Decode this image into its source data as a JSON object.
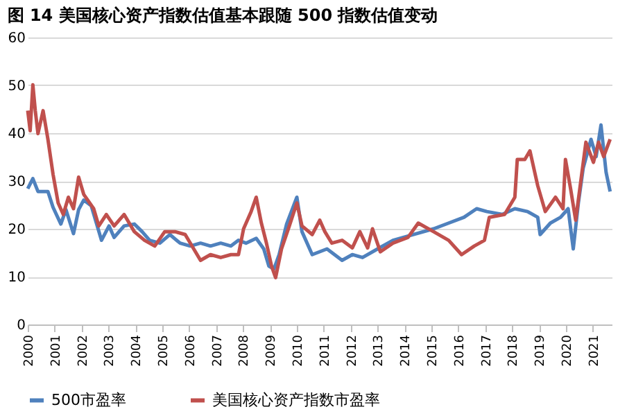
{
  "chart_data": {
    "type": "line",
    "title": "图 14 美国核心资产指数估值基本跟随 500 指数估值变动",
    "xlim": [
      2000,
      2021.7
    ],
    "xticks": [
      2000,
      2001,
      2002,
      2003,
      2004,
      2005,
      2006,
      2007,
      2008,
      2009,
      2010,
      2011,
      2012,
      2013,
      2014,
      2015,
      2016,
      2017,
      2018,
      2019,
      2020,
      2021
    ],
    "ylim": [
      0,
      60
    ],
    "yticks": [
      0,
      10,
      20,
      30,
      40,
      50,
      60
    ],
    "grid": "y",
    "legend": "bottom",
    "line_style": "solid",
    "marker": "none",
    "series": [
      {
        "name": "500市盈率",
        "color": "#4f81bd",
        "x": [
          2000,
          2000.19,
          2000.38,
          2000.75,
          2000.94,
          2001.23,
          2001.42,
          2001.7,
          2001.89,
          2002.08,
          2002.36,
          2002.74,
          2003.02,
          2003.21,
          2003.58,
          2003.96,
          2004.25,
          2004.53,
          2004.91,
          2005.28,
          2005.66,
          2006.04,
          2006.42,
          2006.79,
          2007.17,
          2007.55,
          2007.83,
          2008.11,
          2008.49,
          2008.77,
          2008.96,
          2009.15,
          2009.34,
          2009.62,
          2010.0,
          2010.19,
          2010.57,
          2011.12,
          2011.68,
          2012.06,
          2012.44,
          2013.0,
          2013.57,
          2014.32,
          2015.08,
          2015.64,
          2016.21,
          2016.68,
          2017.06,
          2017.63,
          2018.1,
          2018.57,
          2018.95,
          2019.04,
          2019.42,
          2019.8,
          2020.08,
          2020.27,
          2020.46,
          2020.64,
          2020.93,
          2021.12,
          2021.3,
          2021.49,
          2021.64
        ],
        "values": [
          28.4,
          30.5,
          27.8,
          27.8,
          24.5,
          21,
          24,
          19,
          24,
          26,
          24.8,
          17.6,
          20.6,
          18.2,
          20.6,
          21,
          19.4,
          17.6,
          17,
          18.8,
          17,
          16.4,
          17,
          16.4,
          17,
          16.4,
          17.6,
          17,
          18,
          15.8,
          12.2,
          11.6,
          14.6,
          21,
          26.6,
          19.4,
          14.6,
          15.8,
          13.4,
          14.6,
          14,
          15.8,
          17.6,
          18.8,
          20,
          21.2,
          22.4,
          24.2,
          23.6,
          23,
          24.2,
          23.6,
          22.4,
          18.8,
          21.2,
          22.4,
          24.2,
          15.8,
          25.4,
          32.7,
          38.7,
          35.1,
          41.7,
          31.8,
          27.8
        ]
      },
      {
        "name": "美国核心资产指数市盈率",
        "color": "#c0504d",
        "x": [
          2000,
          2000.09,
          2000.19,
          2000.28,
          2000.38,
          2000.57,
          2000.75,
          2000.94,
          2001.13,
          2001.32,
          2001.51,
          2001.7,
          2001.89,
          2002.08,
          2002.45,
          2002.64,
          2002.92,
          2003.21,
          2003.58,
          2003.96,
          2004.34,
          2004.72,
          2005.09,
          2005.47,
          2005.85,
          2006.42,
          2006.79,
          2007.17,
          2007.55,
          2007.83,
          2008.02,
          2008.3,
          2008.49,
          2008.68,
          2008.87,
          2009.06,
          2009.21,
          2009.43,
          2009.72,
          2010.0,
          2010.19,
          2010.57,
          2010.85,
          2011.04,
          2011.3,
          2011.68,
          2012.06,
          2012.34,
          2012.63,
          2012.81,
          2013.1,
          2013.57,
          2014.13,
          2014.51,
          2015.08,
          2015.64,
          2016.12,
          2016.59,
          2016.97,
          2017.15,
          2017.72,
          2018.1,
          2018.19,
          2018.47,
          2018.66,
          2018.95,
          2019.23,
          2019.61,
          2019.89,
          2019.98,
          2020.17,
          2020.36,
          2020.74,
          2021.02,
          2021.21,
          2021.4,
          2021.64
        ],
        "values": [
          44.7,
          40.5,
          50.1,
          44.7,
          39.9,
          44.7,
          38.7,
          31.4,
          25.4,
          23,
          26.6,
          24.2,
          30.8,
          27.2,
          24.2,
          20.6,
          23,
          20.6,
          23,
          19.4,
          17.6,
          16.4,
          19.4,
          19.4,
          18.8,
          13.4,
          14.6,
          14,
          14.6,
          14.6,
          20,
          23.6,
          26.6,
          21.2,
          17,
          12.2,
          9.8,
          15.8,
          20.6,
          25.4,
          20.6,
          18.8,
          21.8,
          19.4,
          17,
          17.6,
          16,
          19.4,
          16,
          20,
          15.2,
          17,
          18.2,
          21.2,
          19.4,
          17.6,
          14.6,
          16.4,
          17.6,
          22.4,
          23,
          26.6,
          34.5,
          34.5,
          36.3,
          29,
          23.6,
          26.6,
          24.2,
          34.5,
          28.4,
          21.8,
          38.1,
          33.9,
          38.1,
          35.1,
          38.7
        ]
      }
    ]
  }
}
